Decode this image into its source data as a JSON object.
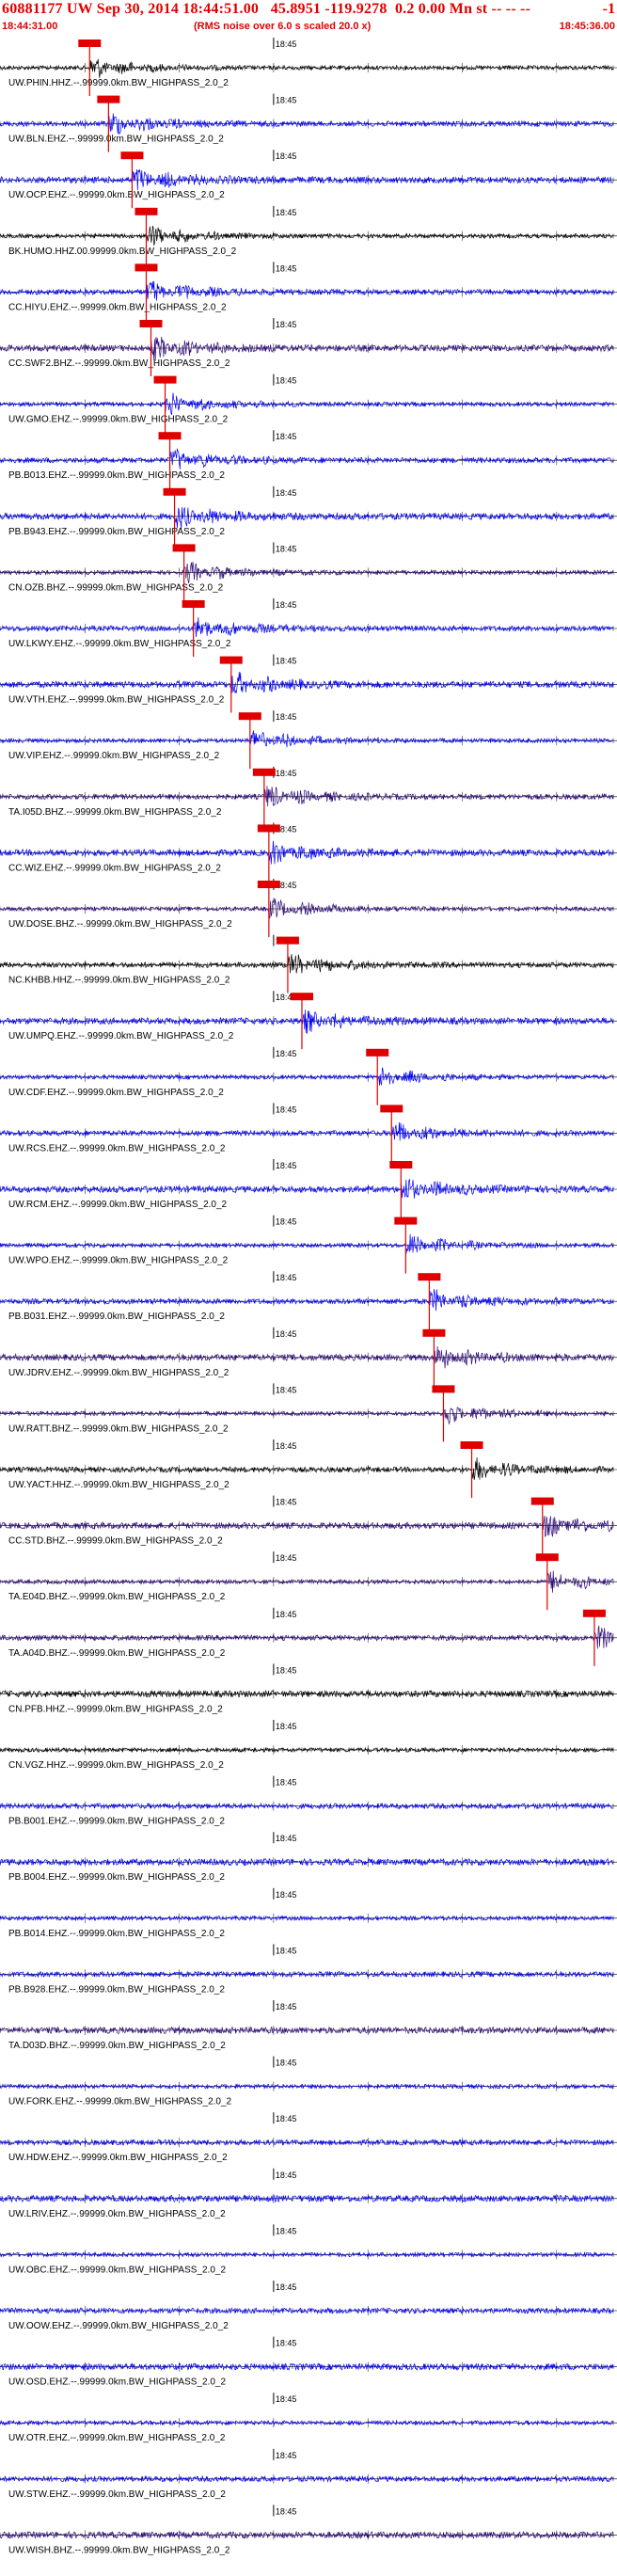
{
  "header": {
    "title": "60881177 UW Sep 30, 2014 18:44:51.00   45.8951 -119.9278  0.2 0.00 Mn st -- -- --",
    "suffix": "-1",
    "start_time": "18:44:31.00",
    "note": "(RMS noise over 6.0 s scaled 20.0 x)",
    "end_time": "18:45:36.00"
  },
  "colors": {
    "pick": "#e00000",
    "grid": "#000000",
    "black": "#000000",
    "blue": "#0000ff",
    "indigo": "#2e0a7a"
  },
  "chart_data": {
    "type": "line",
    "title": "60881177 UW Sep 30, 2014 18:44:51.00   45.8951 -119.9278  0.2 0.00 Mn st -- -- --",
    "x_range": [
      "18:44:31.00",
      "18:45:36.00"
    ],
    "minute_mark": "18:45",
    "traces": [
      {
        "label": "UW.PHIN.HHZ.--.99999.0km.BW_HIGHPASS_2.0_2",
        "color": "black",
        "pick": "18:44:40.5"
      },
      {
        "label": "UW.BLN.EHZ.--.99999.0km.BW_HIGHPASS_2.0_2",
        "color": "blue",
        "pick": "18:44:42.5"
      },
      {
        "label": "UW.OCP.EHZ.--.99999.0km.BW_HIGHPASS_2.0_2",
        "color": "blue",
        "pick": "18:44:45.0"
      },
      {
        "label": "BK.HUMO.HHZ.00.99999.0km.BW_HIGHPASS_2.0_2",
        "color": "black",
        "pick": "18:44:46.5"
      },
      {
        "label": "CC.HIYU.EHZ.--.99999.0km.BW_HIGHPASS_2.0_2",
        "color": "blue",
        "pick": "18:44:46.5"
      },
      {
        "label": "CC.SWF2.BHZ.--.99999.0km.BW_HIGHPASS_2.0_2",
        "color": "indigo",
        "pick": "18:44:47.0"
      },
      {
        "label": "UW.GMO.EHZ.--.99999.0km.BW_HIGHPASS_2.0_2",
        "color": "blue",
        "pick": "18:44:48.5"
      },
      {
        "label": "PB.B013.EHZ.--.99999.0km.BW_HIGHPASS_2.0_2",
        "color": "blue",
        "pick": "18:44:49.0"
      },
      {
        "label": "PB.B943.EHZ.--.99999.0km.BW_HIGHPASS_2.0_2",
        "color": "blue",
        "pick": "18:44:49.5"
      },
      {
        "label": "CN.OZB.BHZ.--.99999.0km.BW_HIGHPASS_2.0_2",
        "color": "indigo",
        "pick": "18:44:50.5"
      },
      {
        "label": "UW.LKWY.EHZ.--.99999.0km.BW_HIGHPASS_2.0_2",
        "color": "blue",
        "pick": "18:44:51.5"
      },
      {
        "label": "UW.VTH.EHZ.--.99999.0km.BW_HIGHPASS_2.0_2",
        "color": "blue",
        "pick": "18:44:55.5"
      },
      {
        "label": "UW.VIP.EHZ.--.99999.0km.BW_HIGHPASS_2.0_2",
        "color": "blue",
        "pick": "18:44:57.5"
      },
      {
        "label": "TA.I05D.BHZ.--.99999.0km.BW_HIGHPASS_2.0_2",
        "color": "indigo",
        "pick": "18:44:59.0"
      },
      {
        "label": "CC.WIZ.EHZ.--.99999.0km.BW_HIGHPASS_2.0_2",
        "color": "blue",
        "pick": "18:44:59.5"
      },
      {
        "label": "UW.DOSE.BHZ.--.99999.0km.BW_HIGHPASS_2.0_2",
        "color": "indigo",
        "pick": "18:44:59.5"
      },
      {
        "label": "NC.KHBB.HHZ.--.99999.0km.BW_HIGHPASS_2.0_2",
        "color": "black",
        "pick": "18:45:01.5"
      },
      {
        "label": "UW.UMPQ.EHZ.--.99999.0km.BW_HIGHPASS_2.0_2",
        "color": "blue",
        "pick": "18:45:03.0"
      },
      {
        "label": "UW.CDF.EHZ.--.99999.0km.BW_HIGHPASS_2.0_2",
        "color": "blue",
        "pick": "18:45:11.0"
      },
      {
        "label": "UW.RCS.EHZ.--.99999.0km.BW_HIGHPASS_2.0_2",
        "color": "blue",
        "pick": "18:45:12.5"
      },
      {
        "label": "UW.RCM.EHZ.--.99999.0km.BW_HIGHPASS_2.0_2",
        "color": "blue",
        "pick": "18:45:13.5"
      },
      {
        "label": "UW.WPO.EHZ.--.99999.0km.BW_HIGHPASS_2.0_2",
        "color": "blue",
        "pick": "18:45:14.0"
      },
      {
        "label": "PB.B031.EHZ.--.99999.0km.BW_HIGHPASS_2.0_2",
        "color": "blue",
        "pick": "18:45:16.5"
      },
      {
        "label": "UW.JDRV.EHZ.--.99999.0km.BW_HIGHPASS_2.0_2",
        "color": "indigo",
        "pick": "18:45:17.0"
      },
      {
        "label": "UW.RATT.BHZ.--.99999.0km.BW_HIGHPASS_2.0_2",
        "color": "indigo",
        "pick": "18:45:18.0"
      },
      {
        "label": "UW.YACT.HHZ.--.99999.0km.BW_HIGHPASS_2.0_2",
        "color": "black",
        "pick": "18:45:21.0"
      },
      {
        "label": "CC.STD.BHZ.--.99999.0km.BW_HIGHPASS_2.0_2",
        "color": "indigo",
        "pick": "18:45:28.5"
      },
      {
        "label": "TA.E04D.BHZ.--.99999.0km.BW_HIGHPASS_2.0_2",
        "color": "indigo",
        "pick": "18:45:29.0"
      },
      {
        "label": "TA.A04D.BHZ.--.99999.0km.BW_HIGHPASS_2.0_2",
        "color": "indigo",
        "pick": "18:45:34.0"
      },
      {
        "label": "CN.PFB.HHZ.--.99999.0km.BW_HIGHPASS_2.0_2",
        "color": "black",
        "pick": null
      },
      {
        "label": "CN.VGZ.HHZ.--.99999.0km.BW_HIGHPASS_2.0_2",
        "color": "black",
        "pick": null
      },
      {
        "label": "PB.B001.EHZ.--.99999.0km.BW_HIGHPASS_2.0_2",
        "color": "blue",
        "pick": null
      },
      {
        "label": "PB.B004.EHZ.--.99999.0km.BW_HIGHPASS_2.0_2",
        "color": "blue",
        "pick": null
      },
      {
        "label": "PB.B014.EHZ.--.99999.0km.BW_HIGHPASS_2.0_2",
        "color": "blue",
        "pick": null
      },
      {
        "label": "PB.B928.EHZ.--.99999.0km.BW_HIGHPASS_2.0_2",
        "color": "blue",
        "pick": null
      },
      {
        "label": "TA.D03D.BHZ.--.99999.0km.BW_HIGHPASS_2.0_2",
        "color": "indigo",
        "pick": null
      },
      {
        "label": "UW.FORK.EHZ.--.99999.0km.BW_HIGHPASS_2.0_2",
        "color": "blue",
        "pick": null
      },
      {
        "label": "UW.HDW.EHZ.--.99999.0km.BW_HIGHPASS_2.0_2",
        "color": "blue",
        "pick": null
      },
      {
        "label": "UW.LRIV.EHZ.--.99999.0km.BW_HIGHPASS_2.0_2",
        "color": "blue",
        "pick": null
      },
      {
        "label": "UW.OBC.EHZ.--.99999.0km.BW_HIGHPASS_2.0_2",
        "color": "blue",
        "pick": null
      },
      {
        "label": "UW.OOW.EHZ.--.99999.0km.BW_HIGHPASS_2.0_2",
        "color": "blue",
        "pick": null
      },
      {
        "label": "UW.OSD.EHZ.--.99999.0km.BW_HIGHPASS_2.0_2",
        "color": "blue",
        "pick": null
      },
      {
        "label": "UW.OTR.EHZ.--.99999.0km.BW_HIGHPASS_2.0_2",
        "color": "blue",
        "pick": null
      },
      {
        "label": "UW.STW.EHZ.--.99999.0km.BW_HIGHPASS_2.0_2",
        "color": "blue",
        "pick": null
      },
      {
        "label": "UW.WISH.BHZ.--.99999.0km.BW_HIGHPASS_2.0_2",
        "color": "indigo",
        "pick": null
      }
    ]
  }
}
